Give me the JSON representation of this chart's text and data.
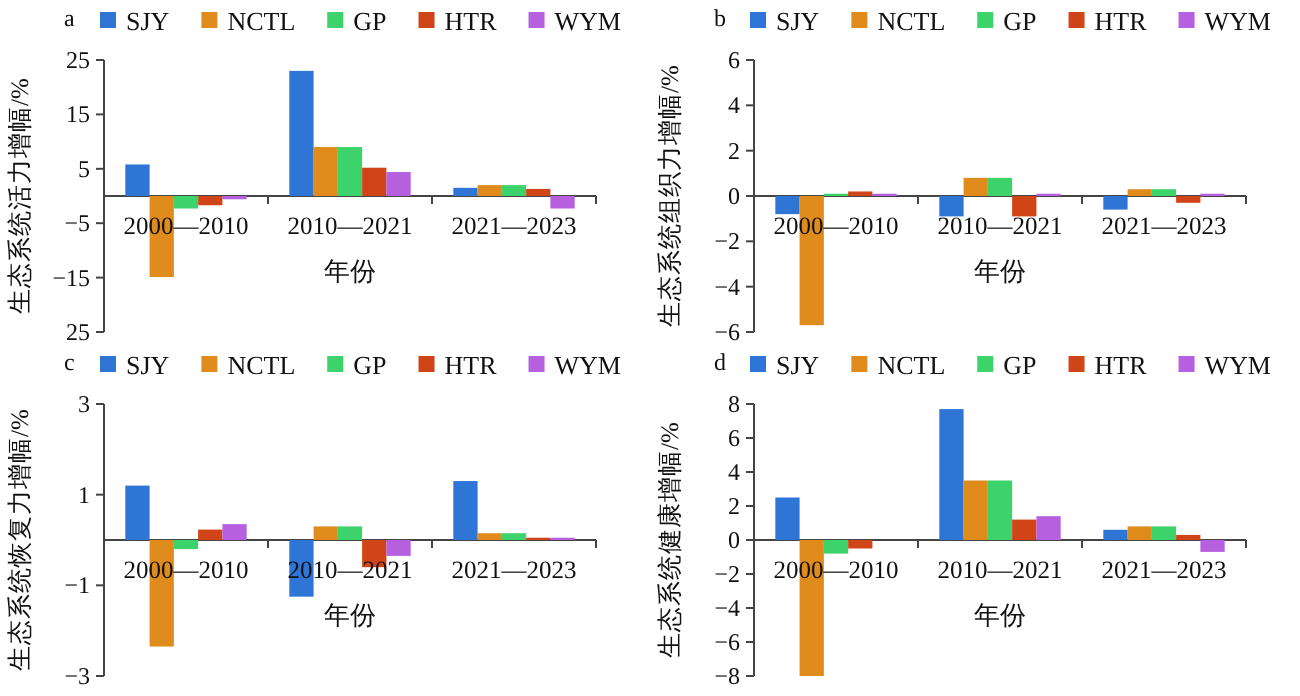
{
  "chart_data": [
    {
      "type": "bar",
      "title": "a",
      "xlabel": "年份",
      "ylabel": "生态系统活力增幅/%",
      "legend": "top",
      "categories": [
        "2000—2010",
        "2010—2021",
        "2021—2023"
      ],
      "ylim": [
        -25,
        25
      ],
      "yticks": [
        {
          "value": -25,
          "label": "25"
        },
        -15,
        -5,
        5,
        15,
        25
      ],
      "series": [
        {
          "name": "SJY",
          "color": "#2e75d6",
          "values": [
            5.8,
            23,
            1.5
          ]
        },
        {
          "name": "NCTL",
          "color": "#e08c1c",
          "values": [
            -14.9,
            9,
            2
          ]
        },
        {
          "name": "GP",
          "color": "#3cd36a",
          "values": [
            -2.3,
            9,
            2
          ]
        },
        {
          "name": "HTR",
          "color": "#d14418",
          "values": [
            -1.7,
            5.2,
            1.3
          ]
        },
        {
          "name": "WYM",
          "color": "#b660e0",
          "values": [
            -0.6,
            4.4,
            -2.3
          ]
        }
      ]
    },
    {
      "type": "bar",
      "title": "b",
      "xlabel": "年份",
      "ylabel": "生态系统组织力增幅/%",
      "legend": "top",
      "categories": [
        "2000—2010",
        "2010—2021",
        "2021—2023"
      ],
      "ylim": [
        -6,
        6
      ],
      "yticks": [
        -6,
        -4,
        -2,
        0,
        2,
        4,
        6
      ],
      "series": [
        {
          "name": "SJY",
          "color": "#2e75d6",
          "values": [
            -0.8,
            -0.9,
            -0.6
          ]
        },
        {
          "name": "NCTL",
          "color": "#e08c1c",
          "values": [
            -5.7,
            0.8,
            0.3
          ]
        },
        {
          "name": "GP",
          "color": "#3cd36a",
          "values": [
            0.1,
            0.8,
            0.3
          ]
        },
        {
          "name": "HTR",
          "color": "#d14418",
          "values": [
            0.2,
            -0.9,
            -0.3
          ]
        },
        {
          "name": "WYM",
          "color": "#b660e0",
          "values": [
            0.1,
            0.1,
            0.1
          ]
        }
      ]
    },
    {
      "type": "bar",
      "title": "c",
      "xlabel": "年份",
      "ylabel": "生态系统恢复力增幅/%",
      "legend": "top",
      "categories": [
        "2000—2010",
        "2010—2021",
        "2021—2023"
      ],
      "ylim": [
        -3,
        3
      ],
      "yticks": [
        -3,
        -1,
        1,
        3
      ],
      "series": [
        {
          "name": "SJY",
          "color": "#2e75d6",
          "values": [
            1.2,
            -1.25,
            1.3
          ]
        },
        {
          "name": "NCTL",
          "color": "#e08c1c",
          "values": [
            -2.35,
            0.3,
            0.15
          ]
        },
        {
          "name": "GP",
          "color": "#3cd36a",
          "values": [
            -0.2,
            0.3,
            0.15
          ]
        },
        {
          "name": "HTR",
          "color": "#d14418",
          "values": [
            0.23,
            -0.6,
            0.05
          ]
        },
        {
          "name": "WYM",
          "color": "#b660e0",
          "values": [
            0.35,
            -0.35,
            0.05
          ]
        }
      ]
    },
    {
      "type": "bar",
      "title": "d",
      "xlabel": "年份",
      "ylabel": "生态系统健康增幅/%",
      "legend": "top",
      "categories": [
        "2000—2010",
        "2010—2021",
        "2021—2023"
      ],
      "ylim": [
        -8,
        8
      ],
      "yticks": [
        -8,
        -6,
        -4,
        -2,
        0,
        2,
        4,
        6,
        8
      ],
      "series": [
        {
          "name": "SJY",
          "color": "#2e75d6",
          "values": [
            2.5,
            7.7,
            0.6
          ]
        },
        {
          "name": "NCTL",
          "color": "#e08c1c",
          "values": [
            -8,
            3.5,
            0.8
          ]
        },
        {
          "name": "GP",
          "color": "#3cd36a",
          "values": [
            -0.8,
            3.5,
            0.8
          ]
        },
        {
          "name": "HTR",
          "color": "#d14418",
          "values": [
            -0.5,
            1.2,
            0.3
          ]
        },
        {
          "name": "WYM",
          "color": "#b660e0",
          "values": [
            0,
            1.4,
            -0.7
          ]
        }
      ]
    }
  ]
}
